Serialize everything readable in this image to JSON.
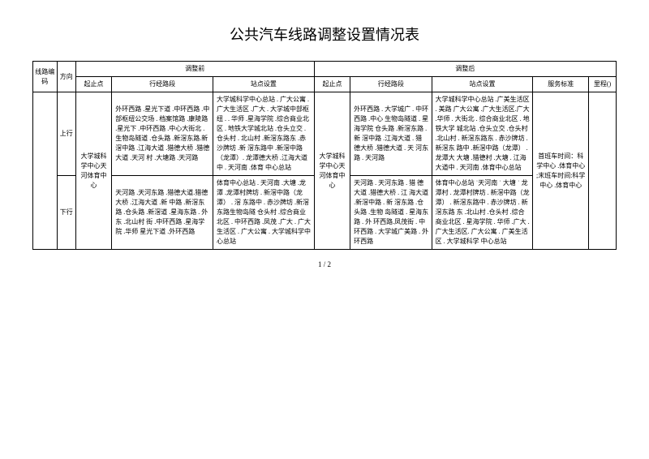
{
  "title": "公共汽车线路调整设置情况表",
  "headers": {
    "route_code": "线路编码",
    "direction": "方向",
    "before": "调整前",
    "after": "调整后",
    "start_end": "起止点",
    "route_section": "行经路段",
    "station_setup": "站点设置",
    "service_std": "服务标准",
    "mileage": "里程()"
  },
  "directions": {
    "up": "上行",
    "down": "下行"
  },
  "start_end_before": "大学城科学中心天河体育中心",
  "start_end_after": "大学城科学中心天河体育中心",
  "before_up_route": "外环西路 .星光下道 .中环西路 .中部枢纽公交场 . 档案馆路 .康陵路 .星光下 .中环西路 .中心大街北 . 生物岛隧道 .仓头路 .新滘东路.新滘中路 .江海大道 .猎德大桥 .猎德大道 .天河 村 .大塘路 .天河路",
  "before_up_station": "大学城科学中心总站 . 广大公寓 . 广大生活区 .广大 . 大学城中部枢纽 . . 华师 .星海学院 .综合商业北区 . 地铁大学城北站 .仓头立交 .仓头村 . 北山村 .新滘东路东 .赤沙牌坊 .新 滘东路中 .新滘中路（龙潭）. 龙潭德大桥 .江海大道中 . 天河南 .体育 中心总站",
  "before_down_route": "天河路 .天河东路 .猎德大道.猎德大桥 .江海大道 .新 中路 .新滘东路 .仓头路 .新滘道 .星海东路 . 外 东 .北山村 街 .中环西路 .星海学院 .华师 星光下道 .外环西路",
  "before_down_station": "体育中心总站 . 天河南 .大塘 .龙潭 .龙潭村牌坊 . 新滘中路（龙潭） . 滘 东路中 . 赤沙牌坊 .新滘东路生物岛隧 仓头村 .综合商业北区 . 中环西路 .凤茂 .广大 . 广大生活区 . 广大公寓 . 大学城科学中心总站",
  "after_up_route": "外环西路 . 大学城广 . 中环西路 .中心 生物岛隧道 . 星海学院 仓头路 .新滘东路 . 新 滘中路 .江海大道 . 猎 德大桥 .猎德大道 . 天 河东路 . 天河路",
  "after_up_station": "大学城科学中心总站 .广美生活区 . 美路 广大公寓 .广大生活区.广大 .华师 . 大街北 . 综合商业北区 . 地铁大学 城北站 .仓头立交 .仓头村 .北山村 . 新滘东路东 . 赤沙牌坊 . 新滘东 路中 .新滘中路（龙潭） . 龙潭大 大塘 .猎德村 .大塘 . 江海大道中 . 天河南 .体育中心总站",
  "after_down_route": "天河路 . 天河东路 . 猎 德大道 .猎德大桥 . 江 海大道 .新滘中路 . 新 滘东路 .仓头路 .生物 岛隧道 . 星海东路 . 外 环西路.凤茂街 . 中环西路 . 大学城广美路 . 外环西路",
  "after_down_station": "体育中心总站 ˙天河南 ˙ 大塘 ˙ 龙潭村 . 龙潭村牌坊 . 新滘中路（龙潭） . 新滘东路中 . 赤沙牌坊 . 新滘东路 东 .北山村 .仓头村 .综合商业北区 . 星海学院 . 华师 .广大 .广大生活区. 广大公寓 . 广美生活区 . 大学城科学 中心总站",
  "service_text": "首班车时间：科学中心 .体育中心 ;末班车时间:科学中心 .体育中心",
  "page": "1 / 2"
}
